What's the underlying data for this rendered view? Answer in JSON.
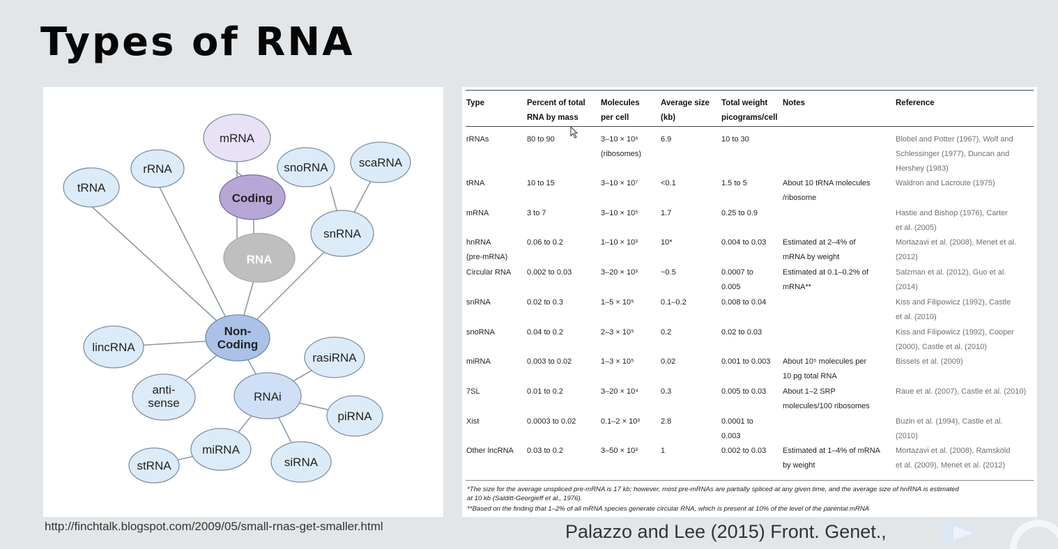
{
  "title": "Types of RNA",
  "diagram": {
    "nodes": {
      "mrna": "mRNA",
      "rrna": "rRNA",
      "trna": "tRNA",
      "coding": "Coding",
      "snorna": "snoRNA",
      "scarna": "scaRNA",
      "snrna": "snRNA",
      "rna": "RNA",
      "noncoding_1": "Non-",
      "noncoding_2": "Coding",
      "lincrna": "lincRNA",
      "rasirna": "rasiRNA",
      "antisense_1": "anti-",
      "antisense_2": "sense",
      "rnai": "RNAi",
      "pirna": "piRNA",
      "mirna": "miRNA",
      "strna": "stRNA",
      "sirna": "siRNA"
    },
    "colors": {
      "light": "#dcebf8",
      "coding": "#b7a7d6",
      "mrna": "#e9e1f5",
      "rna": "#bfbfbf",
      "noncoding": "#a9c2e6",
      "rnai": "#cfe0f6"
    }
  },
  "table": {
    "headers": {
      "type": "Type",
      "percent_1": "Percent of total",
      "percent_2": "RNA by mass",
      "molecules_1": "Molecules",
      "molecules_2": "per cell",
      "size_1": "Average size",
      "size_2": "(kb)",
      "weight_1": "Total weight",
      "weight_2": "picograms/cell",
      "notes": "Notes",
      "reference": "Reference"
    },
    "rows": [
      {
        "type": [
          "rRNAs"
        ],
        "percent": [
          "80 to 90"
        ],
        "molecules": [
          "3–10 × 10⁶",
          "(ribosomes)"
        ],
        "size": [
          "6.9"
        ],
        "weight": [
          "10 to 30"
        ],
        "notes": [],
        "ref": [
          "Blobel and Potter (1967), Wolf and",
          "Schlessinger (1977), Duncan and",
          "Hershey (1983)"
        ]
      },
      {
        "type": [
          "tRNA"
        ],
        "percent": [
          "10 to 15"
        ],
        "molecules": [
          "3–10 × 10⁷"
        ],
        "size": [
          "<0.1"
        ],
        "weight": [
          "1.5 to 5"
        ],
        "notes": [
          "About 10 tRNA molecules",
          "/ribosome"
        ],
        "ref": [
          "Waldron and Lacroute (1975)"
        ]
      },
      {
        "type": [
          "mRNA"
        ],
        "percent": [
          "3 to 7"
        ],
        "molecules": [
          "3–10 × 10⁵"
        ],
        "size": [
          "1.7"
        ],
        "weight": [
          "0.25 to 0.9"
        ],
        "notes": [],
        "ref": [
          "Hastie and Bishop (1976), Carter",
          "et al. (2005)"
        ]
      },
      {
        "type": [
          "hnRNA",
          "(pre-mRNA)"
        ],
        "percent": [
          "0.06 to 0.2"
        ],
        "molecules": [
          "1–10 × 10³"
        ],
        "size": [
          "10*"
        ],
        "weight": [
          "0.004 to 0.03"
        ],
        "notes": [
          "Estimated at 2–4% of",
          "mRNA by weight"
        ],
        "ref": [
          "Mortazavi et al. (2008), Menet et al.",
          "(2012)"
        ]
      },
      {
        "type": [
          "Circular RNA"
        ],
        "percent": [
          "0.002 to 0.03"
        ],
        "molecules": [
          "3–20 × 10³"
        ],
        "size": [
          "~0.5"
        ],
        "weight": [
          "0.0007 to",
          "0.005"
        ],
        "notes": [
          "Estimated at 0.1–0.2% of",
          "mRNA**"
        ],
        "ref": [
          "Salzman et al. (2012), Guo et al.",
          "(2014)"
        ]
      },
      {
        "type": [
          "snRNA"
        ],
        "percent": [
          "0.02 to 0.3"
        ],
        "molecules": [
          "1–5 × 10⁵"
        ],
        "size": [
          "0.1–0.2"
        ],
        "weight": [
          "0.008 to 0.04"
        ],
        "notes": [],
        "ref": [
          "Kiss and Filipowicz (1992), Castle",
          "et al. (2010)"
        ]
      },
      {
        "type": [
          "snoRNA"
        ],
        "percent": [
          "0.04 to 0.2"
        ],
        "molecules": [
          "2–3 × 10⁵"
        ],
        "size": [
          "0.2"
        ],
        "weight": [
          "0.02 to 0.03"
        ],
        "notes": [],
        "ref": [
          "Kiss and Filipowicz (1992), Cooper",
          "(2000), Castle et al. (2010)"
        ]
      },
      {
        "type": [
          "miRNA"
        ],
        "percent": [
          "0.003 to 0.02"
        ],
        "molecules": [
          "1–3 × 10⁵"
        ],
        "size": [
          "0.02"
        ],
        "weight": [
          "0.001 to 0.003"
        ],
        "notes": [
          "About 10⁵ molecules per",
          "10 pg total RNA"
        ],
        "ref": [
          "Bissels et al. (2009)"
        ]
      },
      {
        "type": [
          "7SL"
        ],
        "percent": [
          "0.01 to 0.2"
        ],
        "molecules": [
          "3–20 × 10⁴"
        ],
        "size": [
          "0.3"
        ],
        "weight": [
          "0.005 to 0.03"
        ],
        "notes": [
          "About 1–2 SRP",
          "molecules/100 ribosomes"
        ],
        "ref": [
          "Raue et al. (2007), Castle et al. (2010)"
        ]
      },
      {
        "type": [
          "Xist"
        ],
        "percent": [
          "0.0003 to 0.02"
        ],
        "molecules": [
          "0.1–2 × 10³"
        ],
        "size": [
          "2.8"
        ],
        "weight": [
          "0.0001 to",
          "0.003"
        ],
        "notes": [],
        "ref": [
          "Buzin et al. (1994), Castle et al.",
          "(2010)"
        ]
      },
      {
        "type": [
          "Other lncRNA"
        ],
        "percent": [
          "0.03 to 0.2"
        ],
        "molecules": [
          "3–50 × 10³"
        ],
        "size": [
          "1"
        ],
        "weight": [
          "0.002 to 0.03"
        ],
        "notes": [
          "Estimated at 1–4% of mRNA",
          "by weight"
        ],
        "ref": [
          "Mortazavi et al. (2008), Ramsköld",
          "et al. (2009), Menet et al. (2012)"
        ]
      }
    ],
    "footnotes": [
      "*The size for the average unspliced pre-mRNA is 17 kb; however, most pre-mRNAs are partially spliced at any given time, and the average size of hnRNA is estimated",
      "at 10 kb (Salditt-Georgieff et al., 1976).",
      "**Based on the finding that 1–2% of all mRNA species generate circular RNA, which is present at 10% of the level of the parental mRNA"
    ]
  },
  "captions": {
    "left": "http://finchtalk.blogspot.com/2009/05/small-rnas-get-smaller.html",
    "right": "Palazzo and Lee (2015) Front. Genet.,"
  }
}
